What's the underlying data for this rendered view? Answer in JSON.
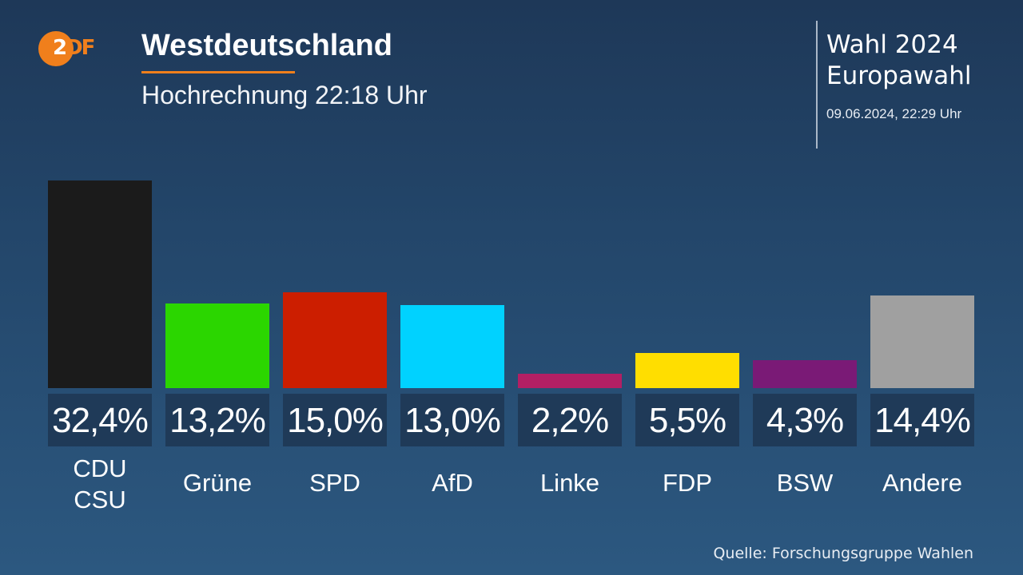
{
  "header": {
    "logo_text_first": "2",
    "logo_text_rest": "DF",
    "title": "Westdeutschland",
    "subtitle": "Hochrechnung 22:18 Uhr"
  },
  "info": {
    "line1": "Wahl 2024",
    "line2": "Europawahl",
    "datetime": "09.06.2024, 22:29 Uhr"
  },
  "footer": {
    "source": "Quelle: Forschungsgruppe Wahlen"
  },
  "colors": {
    "accent": "#f07f1c"
  },
  "chart_data": {
    "type": "bar",
    "title": "Westdeutschland",
    "subtitle": "Hochrechnung 22:18 Uhr",
    "xlabel": "",
    "ylabel": "",
    "ylim": [
      0,
      32.4
    ],
    "grid": false,
    "categories": [
      "CDU\nCSU",
      "Grüne",
      "SPD",
      "AfD",
      "Linke",
      "FDP",
      "BSW",
      "Andere"
    ],
    "category_lines": [
      [
        "CDU",
        "CSU"
      ],
      [
        "Grüne"
      ],
      [
        "SPD"
      ],
      [
        "AfD"
      ],
      [
        "Linke"
      ],
      [
        "FDP"
      ],
      [
        "BSW"
      ],
      [
        "Andere"
      ]
    ],
    "values": [
      32.4,
      13.2,
      15.0,
      13.0,
      2.2,
      5.5,
      4.3,
      14.4
    ],
    "value_labels": [
      "32,4%",
      "13,2%",
      "15,0%",
      "13,0%",
      "2,2%",
      "5,5%",
      "4,3%",
      "14,4%"
    ],
    "bar_colors": [
      "#1b1b1b",
      "#2bd600",
      "#cc1e00",
      "#00d2ff",
      "#b31f64",
      "#ffde00",
      "#7a1a76",
      "#a0a0a0"
    ]
  }
}
